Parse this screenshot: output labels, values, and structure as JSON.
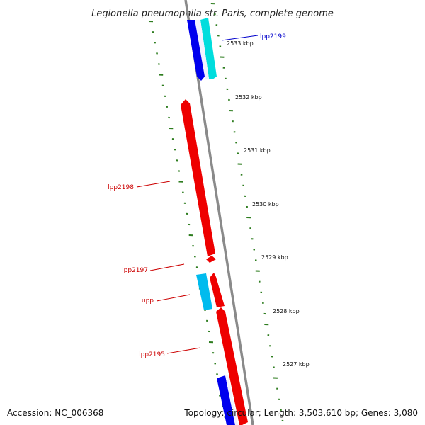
{
  "title": "Legionella pneumophila str. Paris, complete genome",
  "colors": {
    "backbone": "#8a8a8a",
    "ruler": "#2e7d1f",
    "forward_label": "#0000cc",
    "reverse_label": "#cc0000",
    "gene_red": "#ee0000",
    "gene_blue": "#0000ee",
    "gene_cyan": "#00dddd",
    "gene_cyan2": "#00bbee"
  },
  "ticks": [
    {
      "label": "2533 kbp"
    },
    {
      "label": "2532 kbp"
    },
    {
      "label": "2531 kbp"
    },
    {
      "label": "2530 kbp"
    },
    {
      "label": "2529 kbp"
    },
    {
      "label": "2528 kbp"
    },
    {
      "label": "2527 kbp"
    }
  ],
  "genes": [
    {
      "name": "lpp2199",
      "strand": "forward",
      "color": "cyan"
    },
    {
      "name": "",
      "strand": "forward",
      "color": "blue"
    },
    {
      "name": "lpp2198",
      "strand": "reverse",
      "color": "red"
    },
    {
      "name": "lpp2197",
      "strand": "reverse",
      "color": "red"
    },
    {
      "name": "upp",
      "strand": "reverse",
      "color": "cyan2"
    },
    {
      "name": "",
      "strand": "reverse",
      "color": "red"
    },
    {
      "name": "lpp2195",
      "strand": "reverse",
      "color": "red"
    },
    {
      "name": "",
      "strand": "forward",
      "color": "blue"
    }
  ],
  "footer": {
    "accession": "Accession: NC_006368",
    "topology": "Topology: circular; Length: 3,503,610 bp; Genes: 3,080"
  }
}
